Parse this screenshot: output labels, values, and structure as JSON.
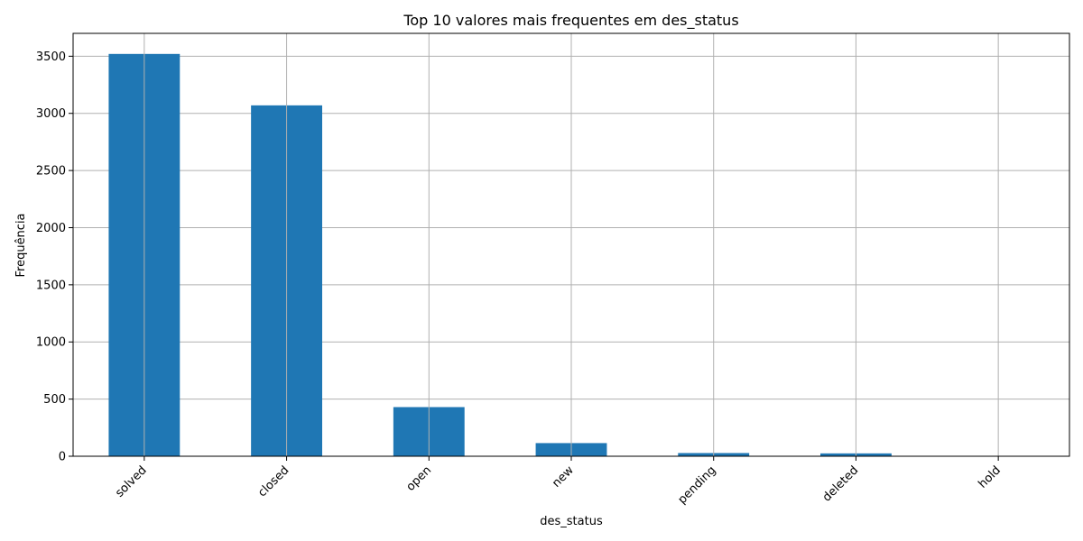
{
  "chart_data": {
    "type": "bar",
    "title": "Top 10 valores mais frequentes em des_status",
    "xlabel": "des_status",
    "ylabel": "Frequência",
    "categories": [
      "solved",
      "closed",
      "open",
      "new",
      "pending",
      "deleted",
      "hold"
    ],
    "values": [
      3520,
      3070,
      430,
      115,
      28,
      25,
      3
    ],
    "ylim": [
      0,
      3700
    ],
    "yticks": [
      0,
      500,
      1000,
      1500,
      2000,
      2500,
      3000,
      3500
    ],
    "grid": true,
    "colors": {
      "bar": "#1f77b4",
      "grid": "#b0b0b0",
      "axis": "#000000"
    }
  }
}
